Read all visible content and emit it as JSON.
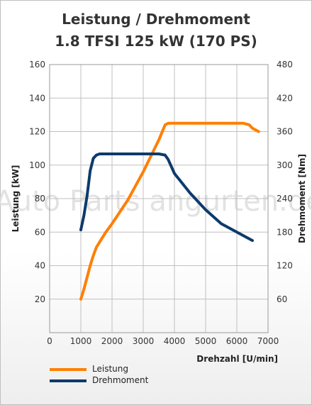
{
  "chart_data": {
    "type": "line",
    "title": "Leistung / Drehmoment",
    "subtitle": "1.8 TFSI 125 kW (170 PS)",
    "xlabel": "Drehzahl [U/min]",
    "ylabel_left": "Leistung [kW]",
    "ylabel_right": "Drehmoment [Nm]",
    "xlim": [
      0,
      7000
    ],
    "ylim_left": [
      0,
      160
    ],
    "ylim_right": [
      0,
      480
    ],
    "x_ticks": [
      0,
      1000,
      2000,
      3000,
      4000,
      5000,
      6000,
      7000
    ],
    "y_ticks_left": [
      20,
      40,
      60,
      80,
      100,
      120,
      140,
      160
    ],
    "y_ticks_right": [
      60,
      120,
      180,
      240,
      300,
      360,
      420,
      480
    ],
    "grid": true,
    "legend_position": "bottom-left",
    "watermark": "Auto Parts angurten.de",
    "series": [
      {
        "name": "Leistung",
        "axis": "left",
        "color": "#ff7f00",
        "x": [
          1000,
          1100,
          1200,
          1300,
          1400,
          1500,
          1600,
          1800,
          2000,
          2500,
          3000,
          3500,
          3700,
          3800,
          4000,
          5000,
          6000,
          6200,
          6400,
          6500,
          6700
        ],
        "y": [
          20,
          26,
          33,
          40,
          46,
          51,
          54,
          60,
          65,
          79,
          96,
          115,
          124,
          125,
          125,
          125,
          125,
          125,
          124,
          122,
          120
        ]
      },
      {
        "name": "Drehmoment",
        "axis": "right",
        "color": "#0d3a6b",
        "x": [
          1000,
          1100,
          1200,
          1300,
          1400,
          1500,
          1600,
          2000,
          2500,
          3000,
          3500,
          3700,
          3800,
          4000,
          4500,
          5000,
          5500,
          6000,
          6500
        ],
        "y": [
          184,
          210,
          245,
          290,
          312,
          318,
          320,
          320,
          320,
          320,
          320,
          318,
          310,
          285,
          250,
          220,
          195,
          180,
          165
        ]
      }
    ]
  }
}
